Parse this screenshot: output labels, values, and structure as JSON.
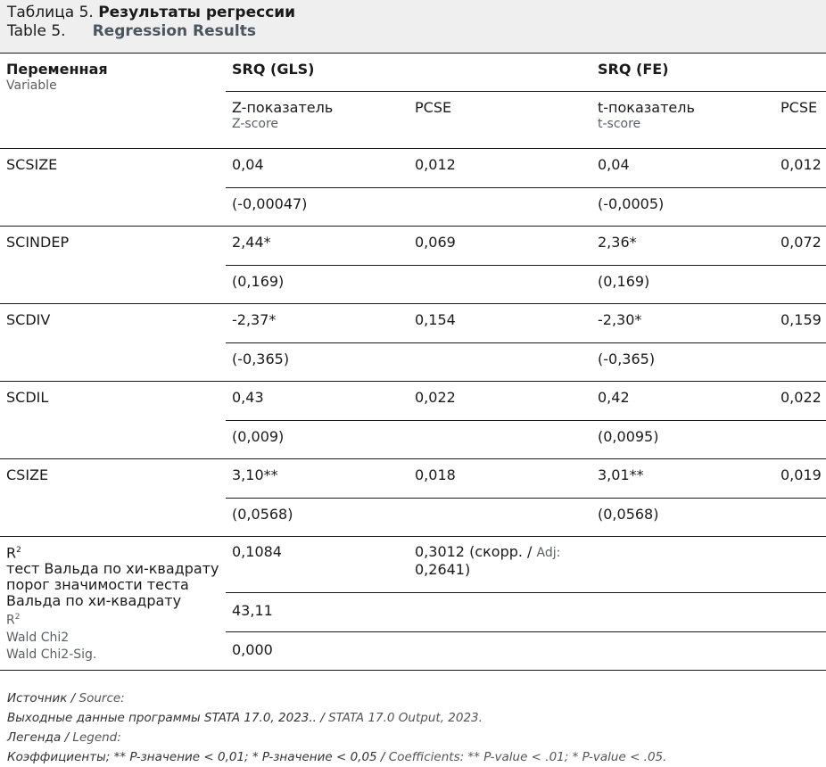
{
  "caption": {
    "ru_prefix": "Таблица 5.",
    "ru_title": "Результаты регрессии",
    "en_prefix": "Table 5.",
    "en_title": "Regression Results"
  },
  "header": {
    "variable_ru": "Переменная",
    "variable_en": "Variable",
    "model1": "SRQ (GLS)",
    "model2": "SRQ (FE)",
    "col1_ru": "Z-показатель",
    "col1_en": "Z-score",
    "col2": "PCSE",
    "col3_ru": "t-показатель",
    "col3_en": "t-score",
    "col4": "PCSE"
  },
  "rows": [
    {
      "var": "SCSIZE",
      "z": "0,04",
      "pcse1": "0,012",
      "t": "0,04",
      "pcse2": "0,012",
      "z_se": "(-0,00047)",
      "t_se": "(-0,0005)"
    },
    {
      "var": "SCINDEP",
      "z": "2,44*",
      "pcse1": "0,069",
      "t": "2,36*",
      "pcse2": "0,072",
      "z_se": "(0,169)",
      "t_se": "(0,169)"
    },
    {
      "var": "SCDIV",
      "z": "-2,37*",
      "pcse1": "0,154",
      "t": "-2,30*",
      "pcse2": "0,159",
      "z_se": "(-0,365)",
      "t_se": "(-0,365)"
    },
    {
      "var": "SCDIL",
      "z": "0,43",
      "pcse1": "0,022",
      "t": "0,42",
      "pcse2": "0,022",
      "z_se": "(0,009)",
      "t_se": "(0,0095)"
    },
    {
      "var": "CSIZE",
      "z": "3,10**",
      "pcse1": "0,018",
      "t": "3,01**",
      "pcse2": "0,019",
      "z_se": "(0,0568)",
      "t_se": "(0,0568)"
    }
  ],
  "stats": {
    "label_ru_r2": "R",
    "label_ru_wald": "тест Вальда по хи-квадрату",
    "label_ru_sig": "порог значимости теста Вальда по хи-квадрату",
    "label_en_r2": "R",
    "label_en_wald": "Wald Chi2",
    "label_en_sig": "Wald Chi2-Sig.",
    "sup": "2",
    "r2": "0,1084",
    "r2_fe_ru": "0,3012 (скорр. / ",
    "r2_fe_en": "Adj:",
    "r2_fe_adj": "0,2641)",
    "wald": "43,11",
    "sig": "0,000"
  },
  "footer": {
    "source_ru": "Источник / ",
    "source_en": "Source:",
    "source_text_ru": "Выходные данные программы STATA 17.0, 2023.. / ",
    "source_text_en": "STATA 17.0 Output, 2023.",
    "legend_ru": "Легенда / ",
    "legend_en": "Legend:",
    "legend_text_ru": "Коэффициенты; ** P-значение < 0,01; * P-значение < 0,05 / ",
    "legend_text_en": "Coefficients: ** P-value < .01; * P-value < .05."
  }
}
